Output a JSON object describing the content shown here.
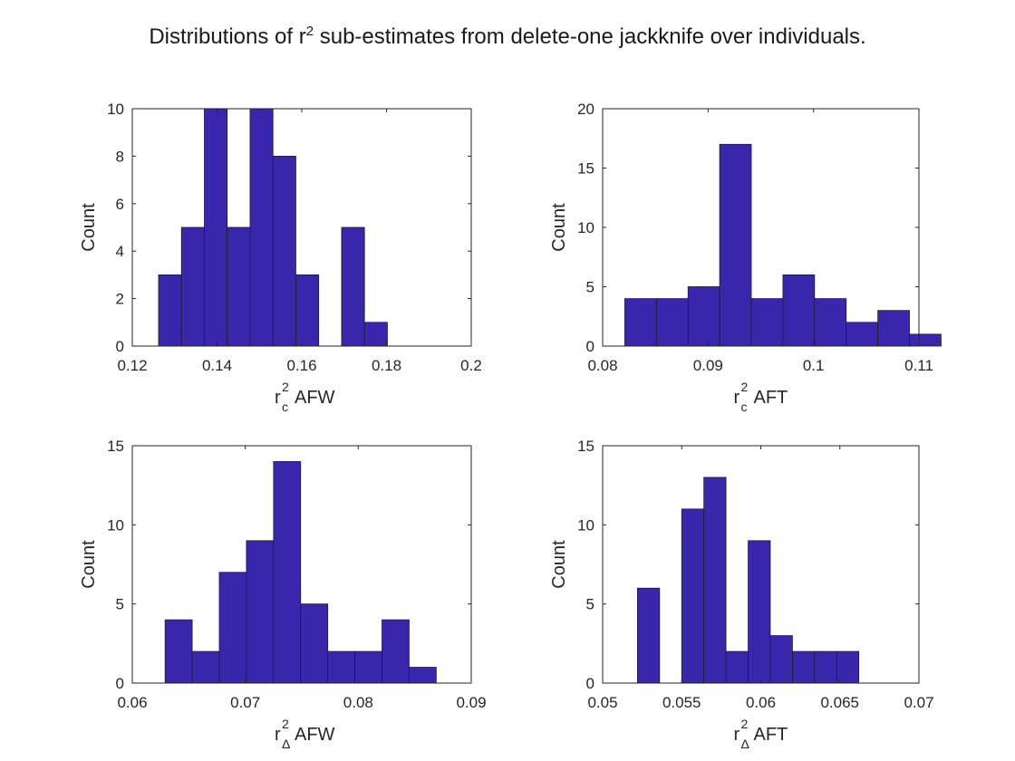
{
  "figure": {
    "title_before": "Distributions of r",
    "title_sup": "2",
    "title_after": " sub-estimates from delete-one jackknife over individuals."
  },
  "bar_color": "#3a26ad",
  "chart_data": [
    {
      "type": "bar",
      "ylabel": "Count",
      "xlabel": {
        "base": "r",
        "sup": "2",
        "sub": "c",
        "text": "AFW"
      },
      "xlim": [
        0.12,
        0.2
      ],
      "ylim": [
        0,
        10
      ],
      "xticks": [
        0.12,
        0.14,
        0.16,
        0.18,
        0.2
      ],
      "xtick_labels": [
        "0.12",
        "0.14",
        "0.16",
        "0.18",
        "0.2"
      ],
      "yticks": [
        0,
        2,
        4,
        6,
        8,
        10
      ],
      "ytick_labels": [
        "0",
        "2",
        "4",
        "6",
        "8",
        "10"
      ],
      "bins": [
        {
          "x0": 0.1262,
          "x1": 0.1316,
          "value": 3
        },
        {
          "x0": 0.1316,
          "x1": 0.137,
          "value": 5
        },
        {
          "x0": 0.137,
          "x1": 0.1424,
          "value": 10
        },
        {
          "x0": 0.1424,
          "x1": 0.1478,
          "value": 5
        },
        {
          "x0": 0.1478,
          "x1": 0.1532,
          "value": 10
        },
        {
          "x0": 0.1532,
          "x1": 0.1586,
          "value": 8
        },
        {
          "x0": 0.1586,
          "x1": 0.164,
          "value": 3
        },
        {
          "x0": 0.164,
          "x1": 0.1694,
          "value": 0
        },
        {
          "x0": 0.1694,
          "x1": 0.1748,
          "value": 5
        },
        {
          "x0": 0.1748,
          "x1": 0.1802,
          "value": 1
        }
      ]
    },
    {
      "type": "bar",
      "ylabel": "Count",
      "xlabel": {
        "base": "r",
        "sup": "2",
        "sub": "c",
        "text": "AFT"
      },
      "xlim": [
        0.08,
        0.11
      ],
      "ylim": [
        0,
        20
      ],
      "xticks": [
        0.08,
        0.09,
        0.1,
        0.11
      ],
      "xtick_labels": [
        "0.08",
        "0.09",
        "0.1",
        "0.11"
      ],
      "yticks": [
        0,
        5,
        10,
        15,
        20
      ],
      "ytick_labels": [
        "0",
        "5",
        "10",
        "15",
        "20"
      ],
      "bins": [
        {
          "x0": 0.0821,
          "x1": 0.0851,
          "value": 4
        },
        {
          "x0": 0.0851,
          "x1": 0.0881,
          "value": 4
        },
        {
          "x0": 0.0881,
          "x1": 0.0911,
          "value": 5
        },
        {
          "x0": 0.0911,
          "x1": 0.0941,
          "value": 17
        },
        {
          "x0": 0.0941,
          "x1": 0.0971,
          "value": 4
        },
        {
          "x0": 0.0971,
          "x1": 0.1001,
          "value": 6
        },
        {
          "x0": 0.1001,
          "x1": 0.1031,
          "value": 4
        },
        {
          "x0": 0.1031,
          "x1": 0.1061,
          "value": 2
        },
        {
          "x0": 0.1061,
          "x1": 0.1091,
          "value": 3
        },
        {
          "x0": 0.1091,
          "x1": 0.1121,
          "value": 1
        }
      ]
    },
    {
      "type": "bar",
      "ylabel": "Count",
      "xlabel": {
        "base": "r",
        "sup": "2",
        "sub": "Δ",
        "text": "AFW"
      },
      "xlim": [
        0.06,
        0.09
      ],
      "ylim": [
        0,
        15
      ],
      "xticks": [
        0.06,
        0.07,
        0.08,
        0.09
      ],
      "xtick_labels": [
        "0.06",
        "0.07",
        "0.08",
        "0.09"
      ],
      "yticks": [
        0,
        5,
        10,
        15
      ],
      "ytick_labels": [
        "0",
        "5",
        "10",
        "15"
      ],
      "bins": [
        {
          "x0": 0.0629,
          "x1": 0.0653,
          "value": 4
        },
        {
          "x0": 0.0653,
          "x1": 0.0677,
          "value": 2
        },
        {
          "x0": 0.0677,
          "x1": 0.0701,
          "value": 7
        },
        {
          "x0": 0.0701,
          "x1": 0.0725,
          "value": 9
        },
        {
          "x0": 0.0725,
          "x1": 0.0749,
          "value": 14
        },
        {
          "x0": 0.0749,
          "x1": 0.0773,
          "value": 5
        },
        {
          "x0": 0.0773,
          "x1": 0.0797,
          "value": 2
        },
        {
          "x0": 0.0797,
          "x1": 0.0821,
          "value": 2
        },
        {
          "x0": 0.0821,
          "x1": 0.0845,
          "value": 4
        },
        {
          "x0": 0.0845,
          "x1": 0.0869,
          "value": 1
        }
      ]
    },
    {
      "type": "bar",
      "ylabel": "Count",
      "xlabel": {
        "base": "r",
        "sup": "2",
        "sub": "Δ",
        "text": "AFT"
      },
      "xlim": [
        0.05,
        0.07
      ],
      "ylim": [
        0,
        15
      ],
      "xticks": [
        0.05,
        0.055,
        0.06,
        0.065,
        0.07
      ],
      "xtick_labels": [
        "0.05",
        "0.055",
        "0.06",
        "0.065",
        "0.07"
      ],
      "yticks": [
        0,
        5,
        10,
        15
      ],
      "ytick_labels": [
        "0",
        "5",
        "10",
        "15"
      ],
      "bins": [
        {
          "x0": 0.0522,
          "x1": 0.0536,
          "value": 6
        },
        {
          "x0": 0.0536,
          "x1": 0.055,
          "value": 0
        },
        {
          "x0": 0.055,
          "x1": 0.0564,
          "value": 11
        },
        {
          "x0": 0.0564,
          "x1": 0.0578,
          "value": 13
        },
        {
          "x0": 0.0578,
          "x1": 0.0592,
          "value": 2
        },
        {
          "x0": 0.0592,
          "x1": 0.0606,
          "value": 9
        },
        {
          "x0": 0.0606,
          "x1": 0.062,
          "value": 3
        },
        {
          "x0": 0.062,
          "x1": 0.0634,
          "value": 2
        },
        {
          "x0": 0.0634,
          "x1": 0.0648,
          "value": 2
        },
        {
          "x0": 0.0648,
          "x1": 0.0662,
          "value": 2
        }
      ]
    }
  ]
}
